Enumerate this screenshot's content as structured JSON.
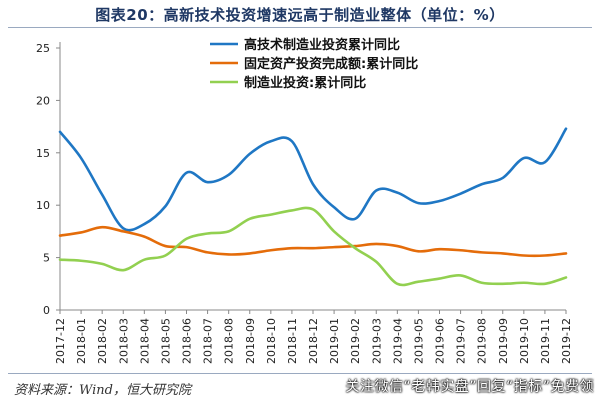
{
  "title": "图表20：高新技术投资增速远高于制造业整体（单位：%）",
  "footer": {
    "source": "资料来源：Wind，恒大研究院",
    "watermark": "关注微信“老韩实盘”回复“指标”免费领"
  },
  "chart_data": {
    "type": "line",
    "title": "图表20：高新技术投资增速远高于制造业整体（单位：%）",
    "xlabel": "",
    "ylabel": "",
    "ylim": [
      0,
      25
    ],
    "yticks": [
      0,
      5,
      10,
      15,
      20,
      25
    ],
    "grid": false,
    "legend_position": "top-center",
    "categories": [
      "2017-12",
      "2018-01",
      "2018-02",
      "2018-03",
      "2018-04",
      "2018-05",
      "2018-06",
      "2018-07",
      "2018-08",
      "2018-09",
      "2018-10",
      "2018-11",
      "2018-12",
      "2019-01",
      "2019-02",
      "2019-03",
      "2019-04",
      "2019-05",
      "2019-06",
      "2019-07",
      "2019-08",
      "2019-09",
      "2019-10",
      "2019-11",
      "2019-12"
    ],
    "series": [
      {
        "name": "高技术制造业投资累计同比",
        "color": "#1f77c4",
        "values": [
          17.0,
          14.5,
          11.0,
          7.8,
          8.2,
          9.9,
          13.1,
          12.2,
          12.9,
          14.9,
          16.1,
          16.1,
          12.0,
          9.8,
          8.7,
          11.4,
          11.2,
          10.2,
          10.4,
          11.1,
          12.0,
          12.6,
          14.5,
          14.1,
          17.3
        ]
      },
      {
        "name": "固定资产投资完成额:累计同比",
        "color": "#e46c0a",
        "values": [
          7.1,
          7.4,
          7.9,
          7.5,
          7.0,
          6.1,
          6.0,
          5.5,
          5.3,
          5.4,
          5.7,
          5.9,
          5.9,
          6.0,
          6.1,
          6.3,
          6.1,
          5.6,
          5.8,
          5.7,
          5.5,
          5.4,
          5.2,
          5.2,
          5.4
        ]
      },
      {
        "name": "制造业投资:累计同比",
        "color": "#92d050",
        "values": [
          4.8,
          4.7,
          4.4,
          3.8,
          4.8,
          5.2,
          6.8,
          7.3,
          7.5,
          8.7,
          9.1,
          9.5,
          9.6,
          7.5,
          5.9,
          4.6,
          2.5,
          2.7,
          3.0,
          3.3,
          2.6,
          2.5,
          2.6,
          2.5,
          3.1
        ]
      }
    ]
  }
}
